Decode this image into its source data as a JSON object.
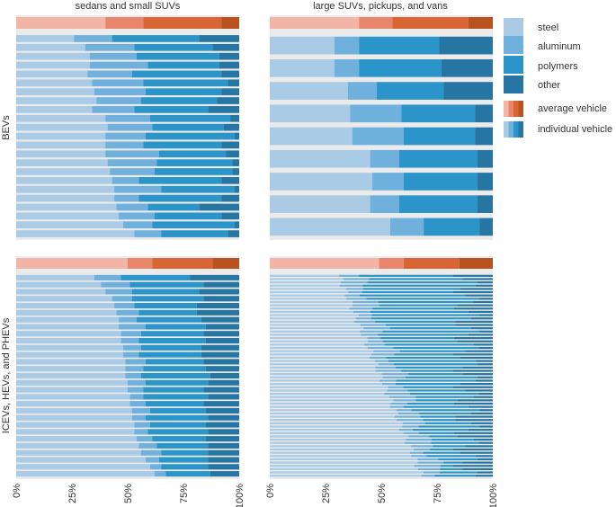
{
  "chart_data": {
    "type": "bar",
    "subtype": "stacked-horizontal-100",
    "xlabel": "",
    "ylabel": "",
    "xlim": [
      0,
      100
    ],
    "x_ticks": [
      "0%",
      "25%",
      "50%",
      "75%",
      "100%"
    ],
    "column_titles": [
      "sedans and small SUVs",
      "large SUVs, pickups, and vans"
    ],
    "row_titles": [
      "BEVs",
      "ICEVs, HEVs, and PHEVs"
    ],
    "legend": {
      "position": "right",
      "items": [
        "steel",
        "aluminum",
        "polymers",
        "other"
      ],
      "swatch_labels": [
        "average vehicle",
        "individual vehicle"
      ]
    },
    "material_colors": {
      "individual": [
        "#a9cbe6",
        "#6fb0dd",
        "#2b94c8",
        "#2675a3"
      ],
      "average": [
        "#f2b5a5",
        "#e8866b",
        "#d86635",
        "#b8521f"
      ]
    },
    "panels": [
      {
        "column": "sedans and small SUVs",
        "row": "BEVs",
        "average": [
          40,
          17,
          35,
          8
        ],
        "vehicles": [
          [
            26,
            17,
            39,
            18
          ],
          [
            31,
            22,
            35,
            12
          ],
          [
            33,
            21,
            37,
            9
          ],
          [
            33,
            26,
            32,
            9
          ],
          [
            32,
            20,
            40,
            8
          ],
          [
            34,
            23,
            38,
            5
          ],
          [
            35,
            23,
            34,
            8
          ],
          [
            36,
            20,
            34,
            10
          ],
          [
            34,
            19,
            33,
            14
          ],
          [
            40,
            20,
            36,
            4
          ],
          [
            41,
            20,
            32,
            7
          ],
          [
            40,
            18,
            40,
            2
          ],
          [
            40,
            17,
            35,
            8
          ],
          [
            40,
            24,
            30,
            6
          ],
          [
            41,
            22,
            34,
            3
          ],
          [
            42,
            20,
            35,
            3
          ],
          [
            43,
            12,
            37,
            8
          ],
          [
            44,
            21,
            33,
            2
          ],
          [
            44,
            11,
            37,
            8
          ],
          [
            45,
            14,
            23,
            18
          ],
          [
            46,
            16,
            30,
            8
          ],
          [
            48,
            13,
            37,
            2
          ],
          [
            53,
            12,
            30,
            5
          ]
        ]
      },
      {
        "column": "large SUVs, pickups, and vans",
        "row": "BEVs",
        "average": [
          40,
          15,
          34,
          11
        ],
        "vehicles": [
          [
            29,
            11,
            36,
            24
          ],
          [
            29,
            11,
            37,
            23
          ],
          [
            35,
            13,
            30,
            22
          ],
          [
            36,
            23,
            33,
            8
          ],
          [
            37,
            23,
            32,
            8
          ],
          [
            45,
            13,
            35,
            7
          ],
          [
            46,
            14,
            33,
            7
          ],
          [
            45,
            13,
            35,
            7
          ],
          [
            54,
            15,
            25,
            6
          ]
        ]
      },
      {
        "column": "sedans and small SUVs",
        "row": "ICEVs, HEVs, and PHEVs",
        "average": [
          50,
          11,
          27,
          12
        ],
        "vehicles": [
          [
            35,
            12,
            31,
            22
          ],
          [
            38,
            13,
            33,
            16
          ],
          [
            40,
            12,
            30,
            18
          ],
          [
            43,
            9,
            32,
            16
          ],
          [
            44,
            9,
            28,
            19
          ],
          [
            45,
            10,
            26,
            19
          ],
          [
            46,
            8,
            29,
            17
          ],
          [
            46,
            12,
            27,
            15
          ],
          [
            47,
            9,
            28,
            16
          ],
          [
            47,
            8,
            30,
            15
          ],
          [
            48,
            8,
            27,
            17
          ],
          [
            48,
            7,
            28,
            17
          ],
          [
            49,
            9,
            26,
            16
          ],
          [
            49,
            8,
            28,
            15
          ],
          [
            49,
            7,
            31,
            13
          ],
          [
            50,
            8,
            28,
            14
          ],
          [
            50,
            7,
            27,
            16
          ],
          [
            51,
            6,
            29,
            14
          ],
          [
            51,
            7,
            26,
            16
          ],
          [
            52,
            8,
            25,
            15
          ],
          [
            52,
            6,
            28,
            14
          ],
          [
            53,
            7,
            25,
            15
          ],
          [
            53,
            6,
            27,
            14
          ],
          [
            54,
            7,
            24,
            15
          ],
          [
            55,
            8,
            23,
            14
          ],
          [
            56,
            9,
            21,
            14
          ],
          [
            58,
            6,
            22,
            14
          ],
          [
            60,
            5,
            21,
            14
          ],
          [
            62,
            5,
            20,
            13
          ]
        ]
      },
      {
        "column": "large SUVs, pickups, and vans",
        "row": "ICEVs, HEVs, and PHEVs",
        "average": [
          49,
          11,
          25,
          15
        ],
        "vehicles_count": 62,
        "vehicles_steel_range": [
          31,
          68
        ]
      }
    ]
  }
}
